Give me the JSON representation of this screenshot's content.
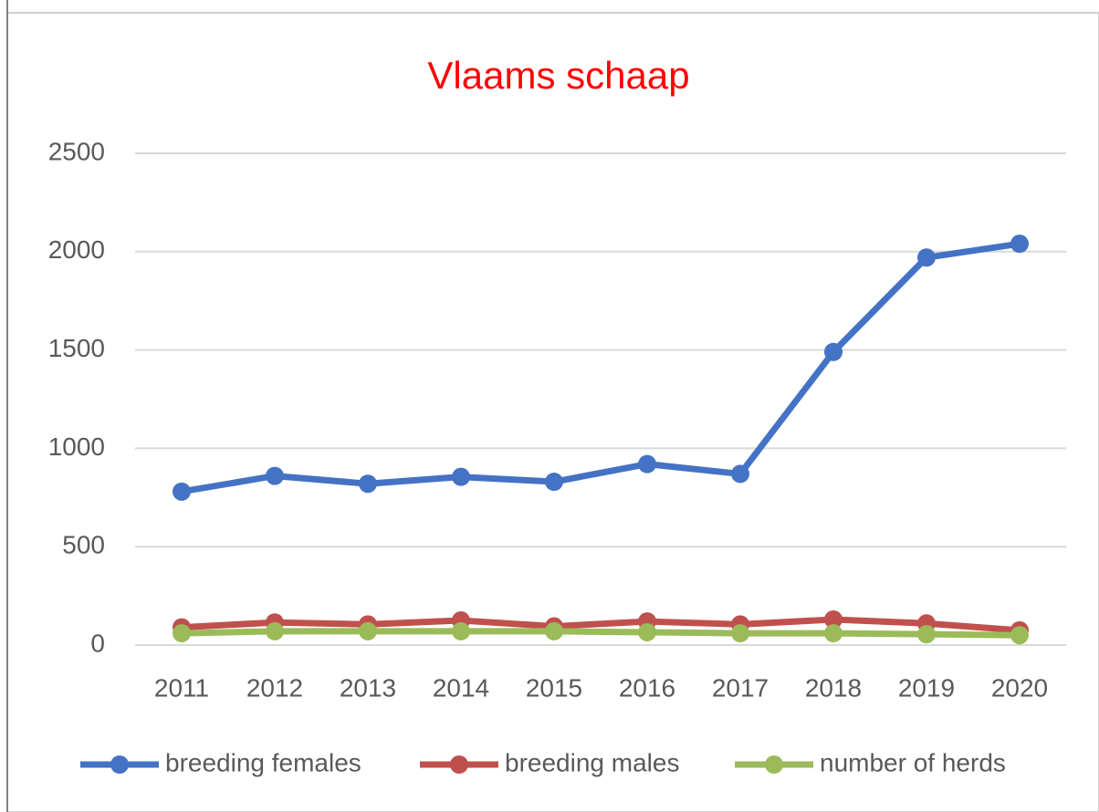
{
  "chart_data": {
    "type": "line",
    "title": "Vlaams schaap",
    "categories": [
      "2011",
      "2012",
      "2013",
      "2014",
      "2015",
      "2016",
      "2017",
      "2018",
      "2019",
      "2020"
    ],
    "series": [
      {
        "name": "breeding females",
        "color": "#4472c4",
        "values": [
          780,
          860,
          820,
          855,
          830,
          920,
          870,
          1490,
          1970,
          2040
        ]
      },
      {
        "name": "breeding males",
        "color": "#c0504d",
        "values": [
          90,
          115,
          105,
          125,
          95,
          120,
          105,
          130,
          110,
          75
        ]
      },
      {
        "name": "number of herds",
        "color": "#9bbb59",
        "values": [
          60,
          70,
          70,
          70,
          70,
          65,
          60,
          60,
          55,
          50
        ]
      }
    ],
    "ylim": [
      0,
      2500
    ],
    "yticks": [
      0,
      500,
      1000,
      1500,
      2000,
      2500
    ],
    "grid": true,
    "legend": "bottom"
  }
}
